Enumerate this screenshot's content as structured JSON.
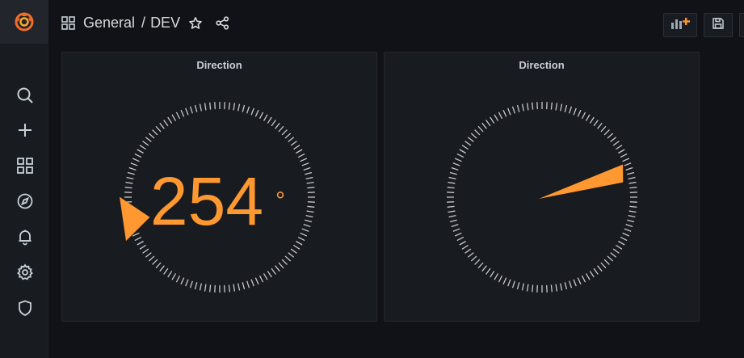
{
  "sidebar": {
    "logo_icon": "grafana-logo-icon",
    "items": [
      {
        "icon": "search-icon"
      },
      {
        "icon": "plus-icon"
      },
      {
        "icon": "dashboards-grid-icon"
      },
      {
        "icon": "compass-icon"
      },
      {
        "icon": "bell-icon"
      },
      {
        "icon": "gear-icon"
      },
      {
        "icon": "shield-icon"
      }
    ]
  },
  "header": {
    "folder": "General",
    "separator": "/",
    "dashboard": "DEV",
    "star_icon": "star-icon",
    "share_icon": "share-icon",
    "add_panel_icon": "add-panel-icon",
    "save_icon": "save-icon"
  },
  "panels": [
    {
      "title": "Direction",
      "value": 254,
      "value_text": "254",
      "unit": "°"
    },
    {
      "title": "Direction",
      "value": 76
    }
  ],
  "colors": {
    "accent": "#ff9830",
    "tick": "#c7c8cc",
    "background": "#111217",
    "panel": "#181b1f"
  }
}
